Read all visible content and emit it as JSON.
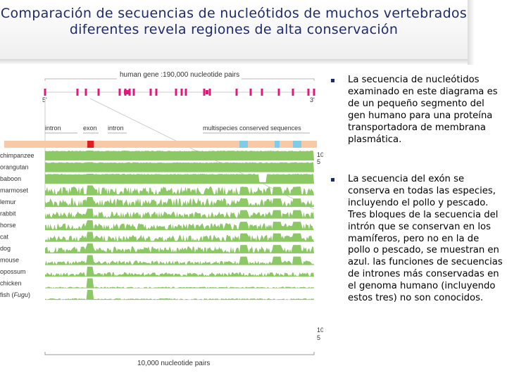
{
  "slide": {
    "title": "Comparación de secuencias de nucleótidos de muchos vertebrados diferentes revela regiones de alta conservación"
  },
  "figure": {
    "gene_label": "human gene :190,000 nucleotide pairs",
    "five_prime": "5'",
    "three_prime": "3'",
    "intron_left": "intron",
    "exon": "exon",
    "intron_right": "intron",
    "conserved": "multispecies conserved sequences",
    "scale_bar": "10,000 nucleotide pairs",
    "species": [
      "chimpanzee",
      "orangutan",
      "baboon",
      "marmoset",
      "lemur",
      "rabbit",
      "horse",
      "cat",
      "dog",
      "mouse",
      "opossum",
      "chicken"
    ],
    "fish_label": "fish (",
    "fish_italic": "Fugu",
    "fish_close": ")",
    "axis_top": "10",
    "axis_bottom": "5",
    "colors": {
      "exon_mark": "#e0197d",
      "intron_band": "#f7c9a6",
      "exon_box": "#e02020",
      "conserved_box": "#7fcbe8",
      "plot": "#8cc864"
    }
  },
  "bullets": [
    {
      "text": "La secuencia de nucleótidos examinado en este diagrama es de un pequeño segmento del gen humano para una proteína transportadora de membrana plasmática."
    },
    {
      "text": "La secuencia del exón se conserva en todas las especies, incluyendo el pollo y pescado. Tres bloques de la secuencia del intrón que se conservan en los mamíferos, pero no en la de pollo o pescado, se muestran en azul. las funciones de secuencias de intrones más conservadas en el genoma humano (incluyendo estos tres) no son conocidos."
    }
  ]
}
